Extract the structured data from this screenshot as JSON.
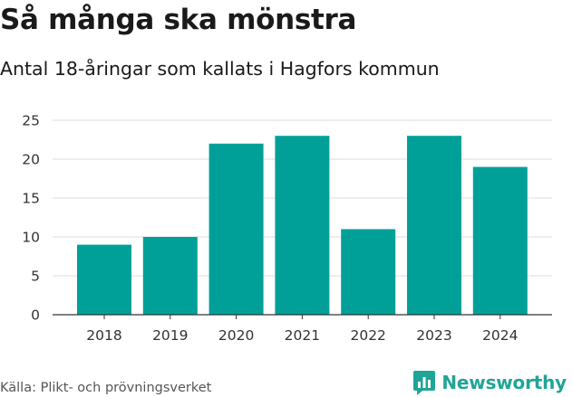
{
  "header": {
    "title": "Så många ska mönstra",
    "subtitle": "Antal 18-åringar som kallats i Hagfors kommun"
  },
  "footer": {
    "source": "Källa: Plikt- och prövningsverket",
    "brand": "Newsworthy",
    "brand_icon": "bar-chart-logo-icon"
  },
  "colors": {
    "bar": "#00a099",
    "grid": "#dddddd",
    "axis": "#333333",
    "brand": "#1fa596"
  },
  "chart_data": {
    "type": "bar",
    "categories": [
      "2018",
      "2019",
      "2020",
      "2021",
      "2022",
      "2023",
      "2024"
    ],
    "values": [
      9,
      10,
      22,
      23,
      11,
      23,
      19
    ],
    "title": "Så många ska mönstra",
    "subtitle": "Antal 18-åringar som kallats i Hagfors kommun",
    "xlabel": "",
    "ylabel": "",
    "ylim": [
      0,
      25
    ],
    "yticks": [
      0,
      5,
      10,
      15,
      20,
      25
    ],
    "grid": true,
    "legend": "none"
  }
}
